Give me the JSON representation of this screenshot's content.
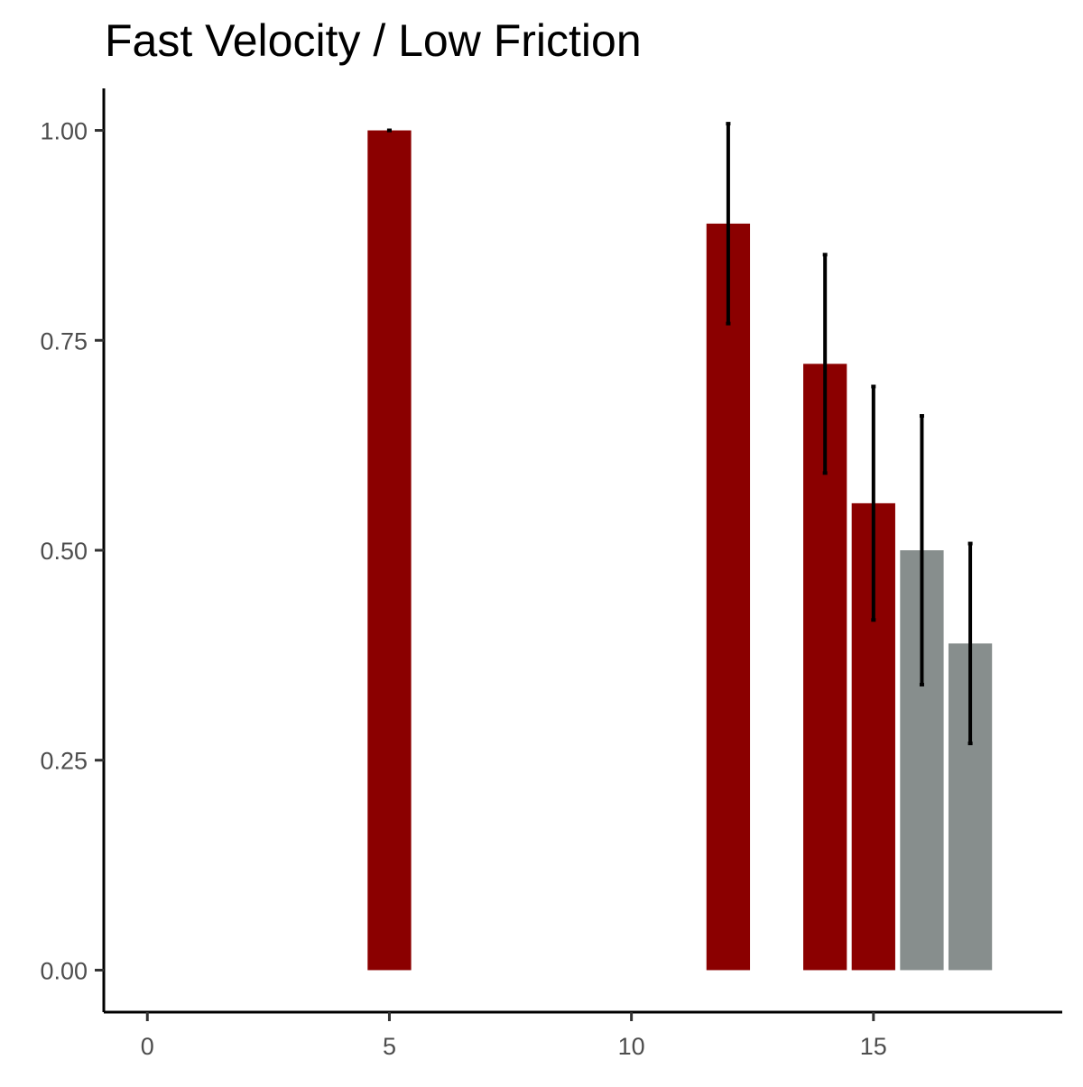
{
  "chart_data": {
    "type": "bar",
    "title": "Fast Velocity / Low Friction",
    "xlabel": "",
    "ylabel": "",
    "xlim": [
      -0.9,
      18.9
    ],
    "ylim": [
      -0.05,
      1.05
    ],
    "x_ticks": [
      0,
      5,
      10,
      15
    ],
    "x_tick_labels": [
      "0",
      "5",
      "10",
      "15"
    ],
    "y_ticks": [
      0,
      0.25,
      0.5,
      0.75,
      1.0
    ],
    "y_tick_labels": [
      "0.00",
      "0.25",
      "0.50",
      "0.75",
      "1.00"
    ],
    "grid": false,
    "legend": "none",
    "colors": {
      "dark_red": "#8b0000",
      "gray": "#878e8d",
      "axis": "#000000",
      "tick_text": "#4d4d4d"
    },
    "bars": [
      {
        "x": 5,
        "value": 1.0,
        "error_low": 1.0,
        "error_high": 1.0,
        "color": "#8b0000"
      },
      {
        "x": 12,
        "value": 0.889,
        "error_low": 0.77,
        "error_high": 1.008,
        "color": "#8b0000"
      },
      {
        "x": 14,
        "value": 0.722,
        "error_low": 0.592,
        "error_high": 0.852,
        "color": "#8b0000"
      },
      {
        "x": 15,
        "value": 0.556,
        "error_low": 0.417,
        "error_high": 0.695,
        "color": "#8b0000"
      },
      {
        "x": 16,
        "value": 0.5,
        "error_low": 0.34,
        "error_high": 0.66,
        "color": "#878e8d"
      },
      {
        "x": 17,
        "value": 0.389,
        "error_low": 0.27,
        "error_high": 0.508,
        "color": "#878e8d"
      }
    ],
    "bar_width": 0.9
  }
}
